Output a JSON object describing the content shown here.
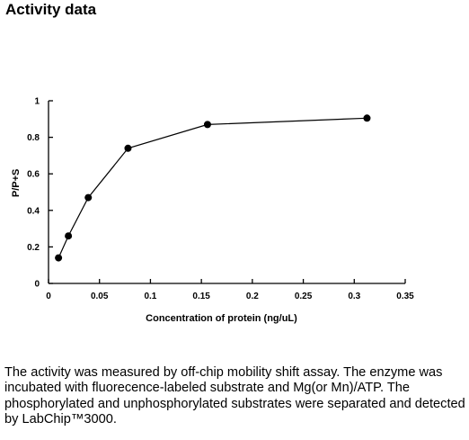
{
  "page": {
    "heading": "Activity data",
    "caption": "The activity was measured by off-chip mobility shift assay. The enzyme was incubated with fluorecence-labeled  substrate and Mg(or Mn)/ATP. The phosphorylated and unphosphorylated substrates were separated and detected by LabChip™3000."
  },
  "chart_data": {
    "type": "line",
    "title": "",
    "xlabel": "Concentration of protein (ng/uL)",
    "ylabel": "P/P+S",
    "xlim": [
      0,
      0.35
    ],
    "ylim": [
      0,
      1
    ],
    "x_ticks": [
      0,
      0.05,
      0.1,
      0.15,
      0.2,
      0.25,
      0.3,
      0.35
    ],
    "y_ticks": [
      0,
      0.2,
      0.4,
      0.6,
      0.8,
      1
    ],
    "x_tick_labels": [
      "0",
      "0.05",
      "0.1",
      "0.15",
      "0.2",
      "0.25",
      "0.3",
      "0.35"
    ],
    "y_tick_labels": [
      "0",
      "0.2",
      "0.4",
      "0.6",
      "0.8",
      "1"
    ],
    "grid": false,
    "legend": "none",
    "series": [
      {
        "x": [
          0.0098,
          0.0195,
          0.039,
          0.078,
          0.156,
          0.3125
        ],
        "y": [
          0.14,
          0.26,
          0.47,
          0.74,
          0.87,
          0.905
        ],
        "color": "#000000",
        "marker": "circle"
      }
    ]
  }
}
